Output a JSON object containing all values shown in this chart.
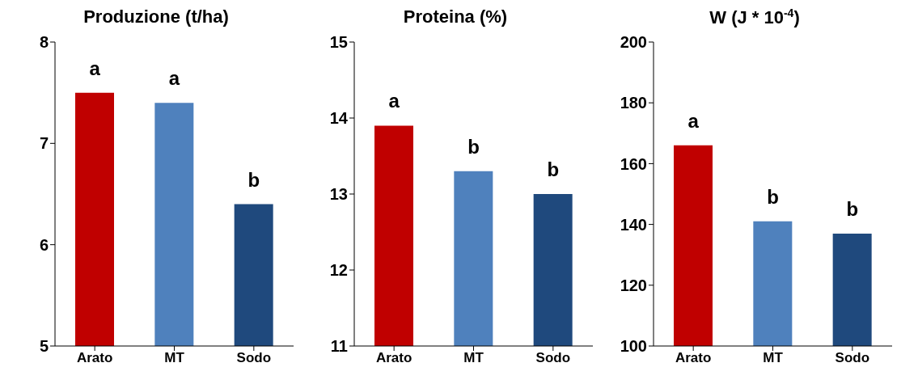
{
  "chart_data": [
    {
      "type": "bar",
      "title": "Produzione (t/ha)",
      "categories": [
        "Arato",
        "MT",
        "Sodo"
      ],
      "values": [
        7.5,
        7.4,
        6.4
      ],
      "colors": [
        "#c00000",
        "#4f81bd",
        "#1f497d"
      ],
      "ylim": [
        5,
        8
      ],
      "yticks": [
        5,
        6,
        7,
        8
      ],
      "grid": false,
      "legend": false,
      "annotations": [
        "a",
        "a",
        "b"
      ]
    },
    {
      "type": "bar",
      "title": "Proteina (%)",
      "categories": [
        "Arato",
        "MT",
        "Sodo"
      ],
      "values": [
        13.9,
        13.3,
        13.0
      ],
      "colors": [
        "#c00000",
        "#4f81bd",
        "#1f497d"
      ],
      "ylim": [
        11,
        15
      ],
      "yticks": [
        11,
        12,
        13,
        14,
        15
      ],
      "grid": false,
      "legend": false,
      "annotations": [
        "a",
        "b",
        "b"
      ]
    },
    {
      "type": "bar",
      "title": "W (J * 10$^{-4}$)",
      "categories": [
        "Arato",
        "MT",
        "Sodo"
      ],
      "values": [
        166,
        141,
        137
      ],
      "colors": [
        "#c00000",
        "#4f81bd",
        "#1f497d"
      ],
      "ylim": [
        100,
        200
      ],
      "yticks": [
        100,
        120,
        140,
        160,
        180,
        200
      ],
      "grid": false,
      "legend": false,
      "annotations": [
        "a",
        "b",
        "b"
      ]
    }
  ]
}
